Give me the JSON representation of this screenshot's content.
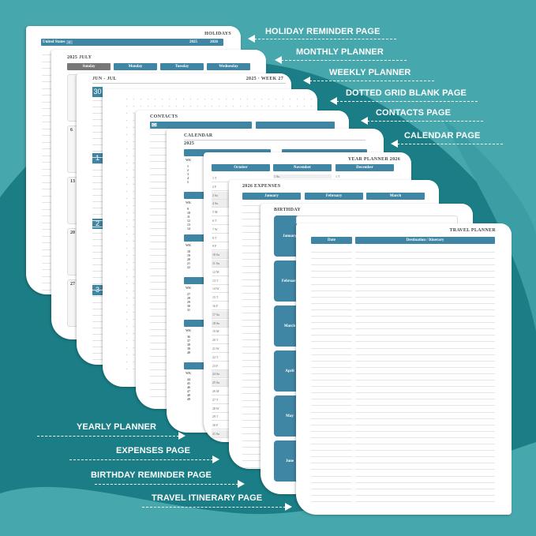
{
  "colors": {
    "background": "#46a7ad",
    "swoosh": "#1b7d85",
    "accent": "#3f85a4",
    "sunday": "#777777"
  },
  "callouts_right": [
    "HOLIDAY REMINDER PAGE",
    "MONTHLY PLANNER",
    "WEEKLY PLANNER",
    "DOTTED GRID BLANK PAGE",
    "CONTACTS PAGE",
    "CALENDAR PAGE"
  ],
  "callouts_left": [
    "YEARLY PLANNER",
    "EXPENSES PAGE",
    "BIRTHDAY REMINDER PAGE",
    "TRAVEL ITINERARY PAGE"
  ],
  "holidays": {
    "title": "HOLIDAYS",
    "country": "United States",
    "years": [
      "2025",
      "2026"
    ]
  },
  "monthly": {
    "title": "2025 JULY",
    "days": [
      "Sunday",
      "Monday",
      "Tuesday",
      "Wednesday"
    ],
    "dates": [
      "6",
      "13",
      "20",
      "27"
    ]
  },
  "weekly": {
    "range": "JUN - JUL",
    "week": "2025 · WEEK 27",
    "dates": [
      "30",
      "1",
      "2",
      "3"
    ]
  },
  "contacts": {
    "title": "CONTACTS",
    "icon": "envelope-icon"
  },
  "calendar": {
    "title": "CALENDAR",
    "year": "2025",
    "wk_label": "WK",
    "weeks": [
      [
        "1",
        "2",
        "3",
        "4",
        "5"
      ],
      [
        "9",
        "10",
        "11",
        "12",
        "13",
        "14"
      ],
      [
        "18",
        "19",
        "20",
        "21",
        "22"
      ],
      [
        "27",
        "28",
        "29",
        "30",
        "31"
      ],
      [
        "36",
        "37",
        "38",
        "39",
        "40"
      ],
      [
        "44",
        "45",
        "46",
        "47",
        "48",
        "49"
      ]
    ]
  },
  "year_planner": {
    "title": "YEAR PLANNER 2026",
    "months": [
      "October",
      "November",
      "December"
    ],
    "october": [
      "1 T",
      "2 F",
      "3 Sa",
      "4 Su",
      "5 M",
      "6 T",
      "7 W",
      "8 T",
      "9 F",
      "10 Sa",
      "11 Su",
      "12 M",
      "13 T",
      "14 W",
      "15 T",
      "16 F",
      "17 Sa",
      "18 Su",
      "19 M",
      "20 T",
      "21 W",
      "22 T",
      "23 F",
      "24 Sa",
      "25 Su",
      "26 M",
      "27 T",
      "28 W",
      "29 T",
      "30 F",
      "31 Sa"
    ],
    "nov_first": "1 Su",
    "dec_first": "1 T"
  },
  "expenses": {
    "title": "2026 EXPENSES",
    "months": [
      "January",
      "February",
      "March"
    ]
  },
  "birthday": {
    "title": "BIRTHDAY",
    "months": [
      "January",
      "February",
      "March",
      "April",
      "May",
      "June"
    ]
  },
  "travel": {
    "title": "TRAVEL PLANNER",
    "columns": [
      "Date",
      "Destination / Itinerary"
    ]
  }
}
